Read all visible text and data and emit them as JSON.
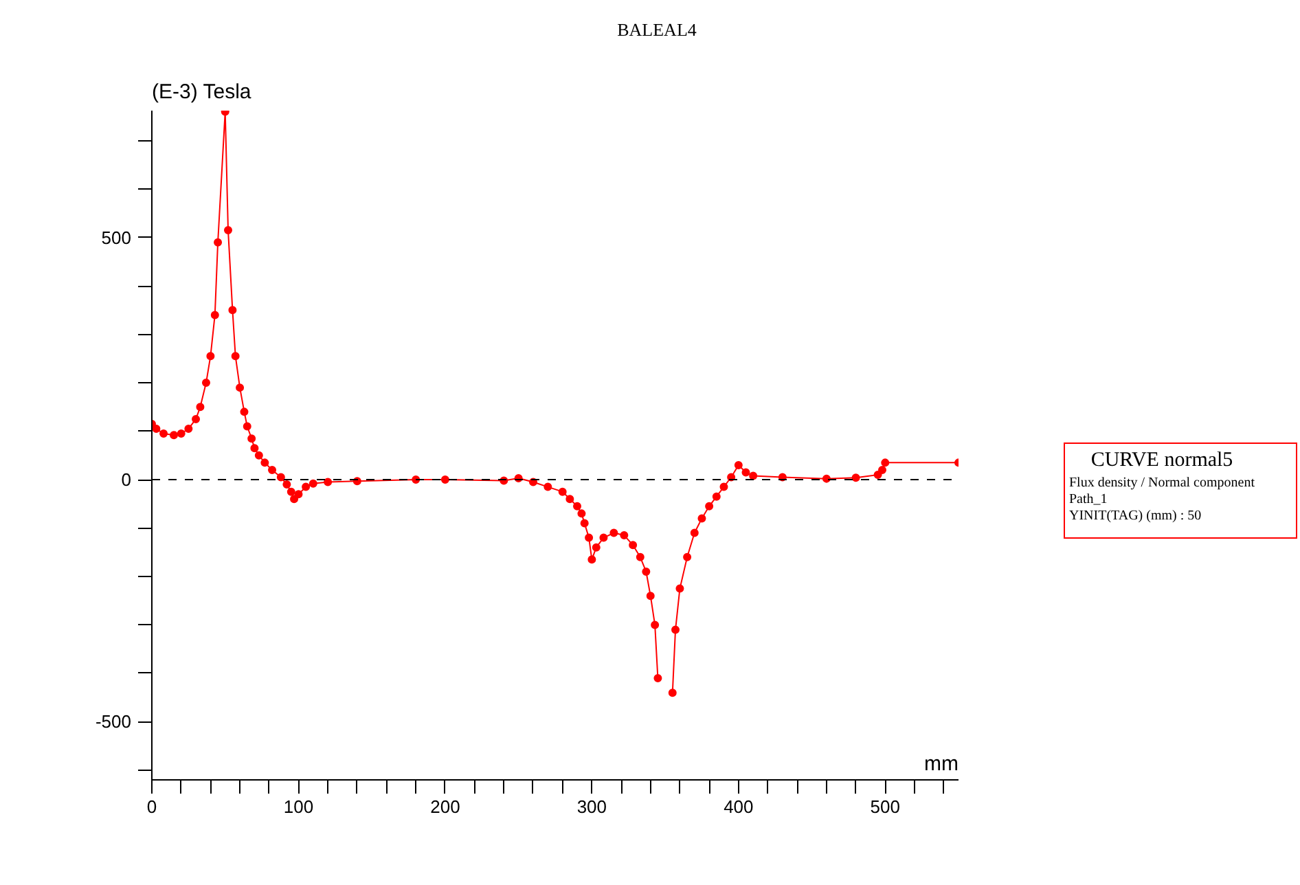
{
  "chart_data": {
    "type": "line",
    "title": "BALEAL4",
    "xlabel": "mm",
    "ylabel": "(E-3) Tesla",
    "x": [
      0,
      3,
      8,
      15,
      20,
      25,
      30,
      33,
      37,
      40,
      43,
      45,
      50,
      52,
      55,
      57,
      60,
      63,
      65,
      68,
      70,
      73,
      77,
      82,
      88,
      92,
      95,
      97,
      100,
      105,
      110,
      120,
      140,
      180,
      200,
      240,
      250,
      260,
      270,
      280,
      285,
      290,
      293,
      295,
      298,
      300,
      303,
      308,
      315,
      322,
      328,
      333,
      337,
      340,
      343,
      345,
      348,
      352,
      355,
      357,
      360,
      365,
      370,
      375,
      380,
      385,
      390,
      395,
      400,
      405,
      410,
      430,
      460,
      480,
      495,
      498,
      500,
      550
    ],
    "series": [
      {
        "color": "#ff0000",
        "values": [
          115,
          105,
          95,
          92,
          95,
          105,
          125,
          150,
          200,
          255,
          340,
          490,
          760,
          515,
          350,
          255,
          190,
          140,
          110,
          85,
          65,
          50,
          35,
          20,
          5,
          -10,
          -25,
          -40,
          -30,
          -15,
          -8,
          -5,
          -3,
          0,
          0,
          -2,
          3,
          -5,
          -15,
          -25,
          -40,
          -55,
          -70,
          -90,
          -120,
          -165,
          -140,
          -120,
          -110,
          -115,
          -135,
          -160,
          -190,
          -240,
          -300,
          -410,
          null,
          null,
          -440,
          -310,
          -225,
          -160,
          -110,
          -80,
          -55,
          -35,
          -15,
          5,
          30,
          15,
          8,
          5,
          2,
          4,
          10,
          20,
          35,
          35
        ]
      }
    ],
    "xlim": [
      0,
      550
    ],
    "ylim": [
      -620,
      762
    ],
    "xticks": [
      0,
      {
        "value": 20,
        "label": null
      },
      {
        "value": 40,
        "label": null
      },
      {
        "value": 60,
        "label": null
      },
      {
        "value": 80,
        "label": null
      },
      100,
      {
        "value": 120,
        "label": null
      },
      {
        "value": 140,
        "label": null
      },
      {
        "value": 160,
        "label": null
      },
      {
        "value": 180,
        "label": null
      },
      200,
      {
        "value": 220,
        "label": null
      },
      {
        "value": 240,
        "label": null
      },
      {
        "value": 260,
        "label": null
      },
      {
        "value": 280,
        "label": null
      },
      300,
      {
        "value": 320,
        "label": null
      },
      {
        "value": 340,
        "label": null
      },
      {
        "value": 360,
        "label": null
      },
      {
        "value": 380,
        "label": null
      },
      400,
      {
        "value": 420,
        "label": null
      },
      {
        "value": 440,
        "label": null
      },
      {
        "value": 460,
        "label": null
      },
      {
        "value": 480,
        "label": null
      },
      500,
      {
        "value": 520,
        "label": null
      },
      {
        "value": 540,
        "label": null
      }
    ],
    "yticks": [
      {
        "value": -600,
        "label": null
      },
      -500,
      {
        "value": -400,
        "label": null
      },
      {
        "value": -300,
        "label": null
      },
      {
        "value": -200,
        "label": null
      },
      {
        "value": -100,
        "label": null
      },
      0,
      {
        "value": 100,
        "label": null
      },
      {
        "value": 200,
        "label": null
      },
      {
        "value": 300,
        "label": null
      },
      {
        "value": 400,
        "label": null
      },
      500,
      {
        "value": 600,
        "label": null
      },
      {
        "value": 700,
        "label": null
      }
    ],
    "ref_lines": [
      {
        "axis": "y",
        "value": 0,
        "color": "#000000",
        "line_style": "dashed"
      }
    ],
    "annotations": [
      "CURVE normal5",
      "Flux density / Normal component",
      "Path_1",
      "YINIT(TAG) (mm) : 50"
    ],
    "marker": "circle",
    "line_style": "solid",
    "grid": false
  }
}
